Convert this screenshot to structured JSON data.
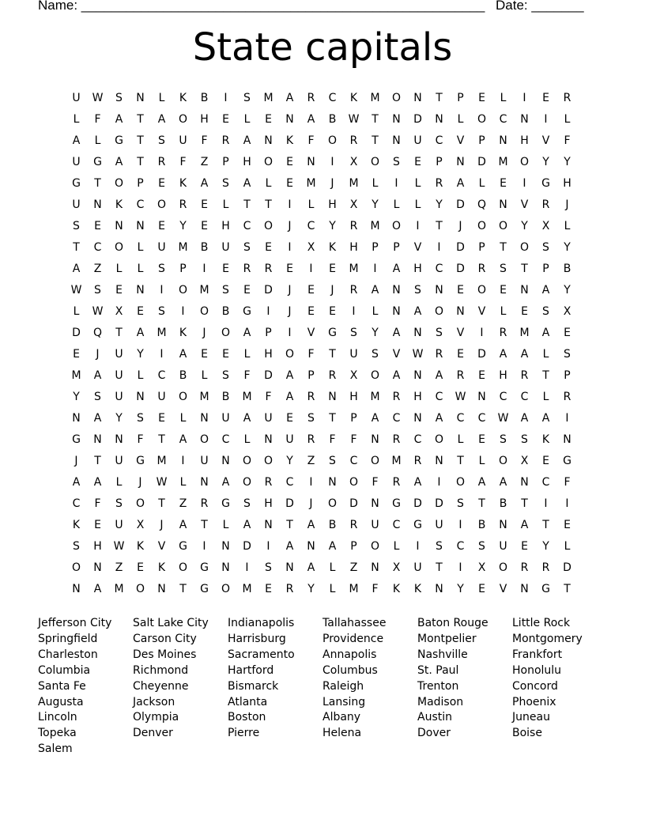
{
  "header": {
    "name_label": "Name: ______________________________________________________",
    "date_label": "Date: _______"
  },
  "title": "State capitals",
  "grid": [
    "UWSNLKBISMARCKMONTPELIER",
    "LFATAOHELENABWTNDNLOCNIL",
    "ALGTSUFRANKFORTNUCVPNHVF",
    "UGATRFZPHOENIXOSEPNDMOYY",
    "GTOPEKASALEMJMLILRALEIGH",
    "UNKCORELTTILHXYLLYDQNVRJ",
    "SENNEYEHCOJCYRMOITJOOYXL",
    "TCOLUMBUSEIXKHPPVIDPTOSY",
    "AZLLSPIERREIEMIAHCDRSTPB",
    "WSENIOMSEDJEJRANSNEOENAY",
    "LWXESIOBGIJEEILNAONVLESX",
    "DQTAMKJOAPIVGSYANSVIRMAE",
    "EJUYIAEELHOFTUSVWREDAALS",
    "MAULCBLSFDAPRXOANAREHRTP",
    "YSUNUOMBMFARNHMRHCWNCCLR",
    "NAYSELNUAUESTPACNACCWAAI",
    "GNNFTAOCLNURFFNRCOLESSKN",
    "JTUGMIUNOOYZSCOMRNTLOXEG",
    "AALJWLNAORCINOFRAIOAANCF",
    "CFSOTZRGSHDJODNGDDSTBTII",
    "KEUXJATLANTABRUCGUIBNATE",
    "SHWKVGINDIANAPOLISCSUEYL",
    "ONZEKOGNISNALZNXUTIXORRD",
    "NAMONTGOMERYLMFKKNYEVNGT"
  ],
  "word_columns": [
    [
      "Jefferson City",
      "Springfield",
      "Charleston",
      "Columbia",
      "Santa Fe",
      "Augusta",
      "Lincoln",
      "Topeka",
      "Salem"
    ],
    [
      "Salt Lake City",
      "Carson City",
      "Des Moines",
      "Richmond",
      "Cheyenne",
      "Jackson",
      "Olympia",
      "Denver"
    ],
    [
      "Indianapolis",
      "Harrisburg",
      "Sacramento",
      "Hartford",
      "Bismarck",
      "Atlanta",
      "Boston",
      "Pierre"
    ],
    [
      "Tallahassee",
      "Providence",
      "Annapolis",
      "Columbus",
      "Raleigh",
      "Lansing",
      "Albany",
      "Helena"
    ],
    [
      "Baton Rouge",
      "Montpelier",
      "Nashville",
      "St. Paul",
      "Trenton",
      "Madison",
      "Austin",
      "Dover"
    ],
    [
      "Little Rock",
      "Montgomery",
      "Frankfort",
      "Honolulu",
      "Concord",
      "Phoenix",
      "Juneau",
      "Boise"
    ]
  ]
}
